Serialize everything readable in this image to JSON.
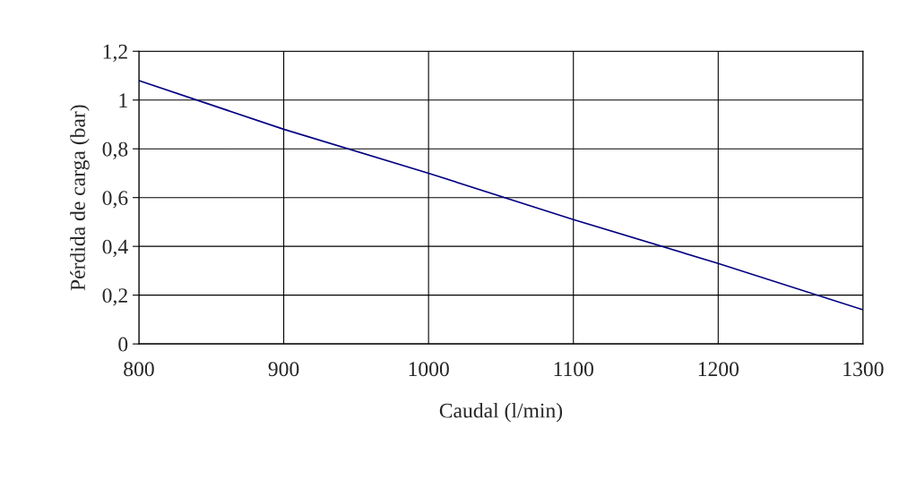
{
  "chart_data": {
    "type": "line",
    "xlabel": "Caudal (l/min)",
    "ylabel": "Pérdida de carga (bar)",
    "x": [
      800,
      900,
      1000,
      1100,
      1200,
      1300
    ],
    "series": [
      {
        "color": "#000080",
        "values": [
          1.08,
          0.88,
          0.7,
          0.51,
          0.33,
          0.14
        ]
      }
    ],
    "xlim": [
      800,
      1300
    ],
    "xticks": [
      800,
      900,
      1000,
      1100,
      1200,
      1300
    ],
    "ylim": [
      0,
      1.2
    ],
    "yticks": [
      0,
      {
        "value": 0.2,
        "label": "0,2"
      },
      {
        "value": 0.4,
        "label": "0,4"
      },
      {
        "value": 0.6,
        "label": "0,6"
      },
      {
        "value": 0.8,
        "label": "0,8"
      },
      1,
      {
        "value": 1.2,
        "label": "1,2"
      }
    ],
    "grid": true,
    "legend": false,
    "marker": "none",
    "line_style": "solid"
  }
}
